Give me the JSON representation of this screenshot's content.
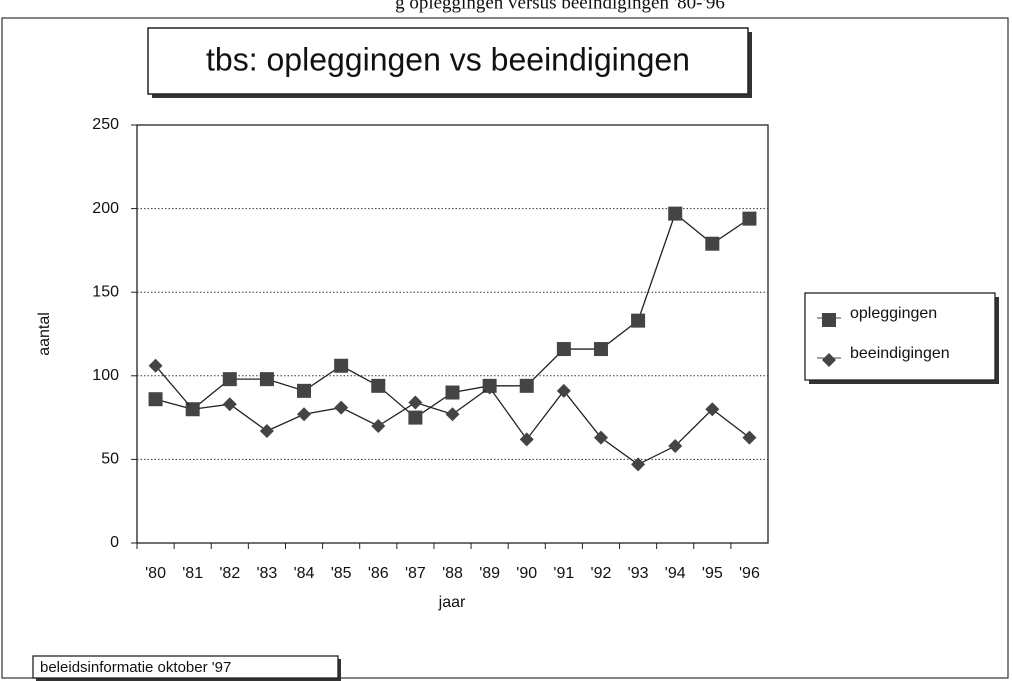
{
  "caption": "g opleggingen versus beeindigingen '80-'96",
  "chart_data": {
    "type": "line",
    "title": "tbs: opleggingen vs beeindigingen",
    "x_label": "jaar",
    "y_label": "aantal",
    "categories": [
      "'80",
      "'81",
      "'82",
      "'83",
      "'84",
      "'85",
      "'86",
      "'87",
      "'88",
      "'89",
      "'90",
      "'91",
      "'92",
      "'93",
      "'94",
      "'95",
      "'96"
    ],
    "series": [
      {
        "name": "opleggingen",
        "color": "#444444",
        "marker": "square",
        "values": [
          86,
          80,
          98,
          98,
          91,
          106,
          94,
          75,
          90,
          94,
          94,
          116,
          116,
          133,
          197,
          179,
          194
        ]
      },
      {
        "name": "beeindigingen",
        "color": "#444444",
        "marker": "diamond",
        "values": [
          106,
          80,
          83,
          67,
          77,
          81,
          70,
          84,
          77,
          93,
          62,
          91,
          63,
          47,
          58,
          80,
          63
        ]
      }
    ],
    "ylim": [
      0,
      250
    ],
    "yticks": [
      0,
      50,
      100,
      150,
      200,
      250
    ],
    "grid": true,
    "legend": "right",
    "footer": "beleidsinformatie oktober '97"
  }
}
